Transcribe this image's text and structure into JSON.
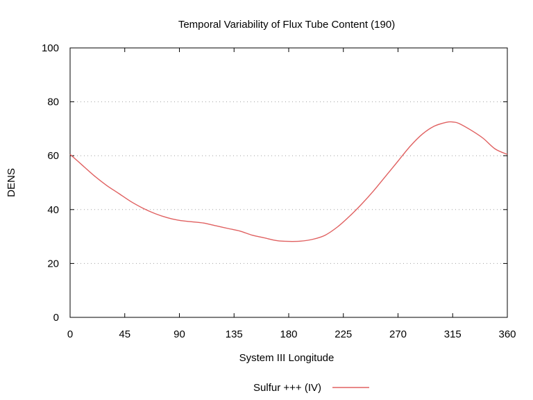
{
  "chart_data": {
    "type": "line",
    "title": "Temporal Variability of Flux Tube Content (190)",
    "xlabel": "System III Longitude",
    "ylabel": "DENS",
    "xlim": [
      0,
      360
    ],
    "ylim": [
      0,
      100
    ],
    "xticks": [
      0,
      45,
      90,
      135,
      180,
      225,
      270,
      315,
      360
    ],
    "yticks": [
      0,
      20,
      40,
      60,
      80,
      100
    ],
    "grid": "horizontal dotted",
    "legend_position": "bottom",
    "series": [
      {
        "name": "Sulfur +++ (IV)",
        "color": "#e06060",
        "x": [
          0,
          10,
          20,
          30,
          40,
          50,
          60,
          70,
          80,
          90,
          100,
          110,
          120,
          130,
          140,
          150,
          160,
          170,
          180,
          190,
          200,
          210,
          220,
          230,
          240,
          250,
          260,
          270,
          280,
          290,
          300,
          310,
          315,
          320,
          330,
          340,
          350,
          360
        ],
        "y": [
          60.5,
          56.5,
          52.5,
          49,
          46,
          43,
          40.5,
          38.5,
          37,
          36,
          35.5,
          35,
          34,
          33,
          32,
          30.5,
          29.5,
          28.5,
          28.2,
          28.3,
          29,
          30.5,
          33.5,
          37.5,
          42,
          47,
          52.5,
          58,
          63.5,
          68,
          71,
          72.4,
          72.5,
          72,
          69.5,
          66.5,
          62.5,
          60.5
        ]
      }
    ]
  }
}
